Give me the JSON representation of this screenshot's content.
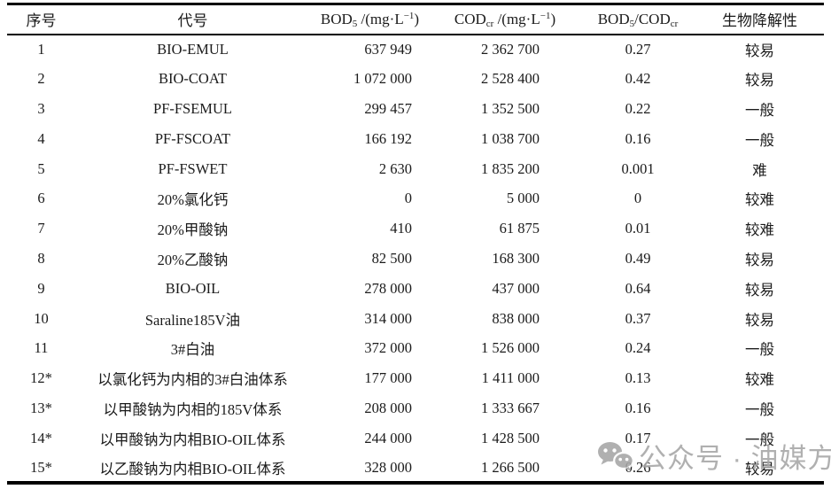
{
  "table": {
    "columns": [
      {
        "pre": "序号"
      },
      {
        "pre": "代号"
      },
      {
        "pre": "BOD",
        "sub": "5",
        "mid": " /(mg·L",
        "sup": "−1",
        "post": ")"
      },
      {
        "pre": "COD",
        "sub": "cr",
        "mid": " /(mg·L",
        "sup": "−1",
        "post": ")"
      },
      {
        "pre": "BOD",
        "sub": "5",
        "mid": "/COD",
        "sub2": "cr"
      },
      {
        "pre": "生物降解性"
      }
    ],
    "rows": [
      [
        "1",
        "BIO-EMUL",
        "637 949",
        "2 362 700",
        "0.27",
        "较易"
      ],
      [
        "2",
        "BIO-COAT",
        "1 072 000",
        "2 528 400",
        "0.42",
        "较易"
      ],
      [
        "3",
        "PF-FSEMUL",
        "299 457",
        "1 352 500",
        "0.22",
        "一般"
      ],
      [
        "4",
        "PF-FSCOAT",
        "166 192",
        "1 038 700",
        "0.16",
        "一般"
      ],
      [
        "5",
        "PF-FSWET",
        "2 630",
        "1 835 200",
        "0.001",
        "难"
      ],
      [
        "6",
        "20%氯化钙",
        "0",
        "5 000",
        "0",
        "较难"
      ],
      [
        "7",
        "20%甲酸钠",
        "410",
        "61 875",
        "0.01",
        "较难"
      ],
      [
        "8",
        "20%乙酸钠",
        "82 500",
        "168 300",
        "0.49",
        "较易"
      ],
      [
        "9",
        "BIO-OIL",
        "278 000",
        "437 000",
        "0.64",
        "较易"
      ],
      [
        "10",
        "Saraline185V油",
        "314 000",
        "838 000",
        "0.37",
        "较易"
      ],
      [
        "11",
        "3#白油",
        "372 000",
        "1 526 000",
        "0.24",
        "一般"
      ],
      [
        "12*",
        "以氯化钙为内相的3#白油体系",
        "177 000",
        "1 411 000",
        "0.13",
        "较难"
      ],
      [
        "13*",
        "以甲酸钠为内相的185V体系",
        "208 000",
        "1 333 667",
        "0.16",
        "一般"
      ],
      [
        "14*",
        "以甲酸钠为内相BIO-OIL体系",
        "244 000",
        "1 428 500",
        "0.17",
        "一般"
      ],
      [
        "15*",
        "以乙酸钠为内相BIO-OIL体系",
        "328 000",
        "1 266 500",
        "0.26",
        "较易"
      ]
    ]
  },
  "watermark": {
    "label": "公众号 · 油媒方",
    "icon": "wechat-icon",
    "color": "#a6a6a6"
  }
}
